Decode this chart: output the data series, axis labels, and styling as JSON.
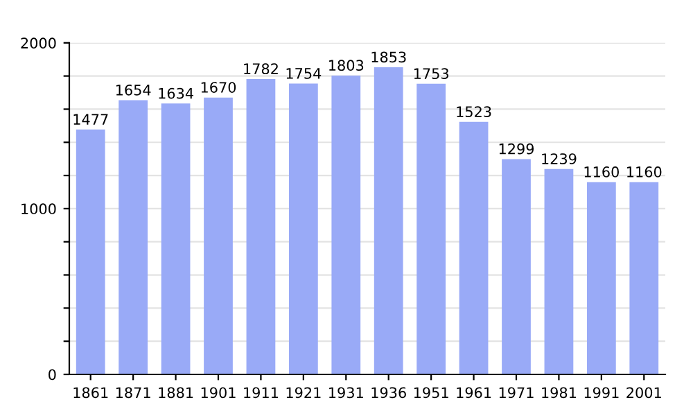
{
  "chart_data": {
    "type": "bar",
    "categories": [
      "1861",
      "1871",
      "1881",
      "1901",
      "1911",
      "1921",
      "1931",
      "1936",
      "1951",
      "1961",
      "1971",
      "1981",
      "1991",
      "2001"
    ],
    "values": [
      1477,
      1654,
      1634,
      1670,
      1782,
      1754,
      1803,
      1853,
      1753,
      1523,
      1299,
      1239,
      1160,
      1160
    ],
    "color": "#99aaf7",
    "data_labels": true,
    "ylim": [
      0,
      2000
    ],
    "yticks": [
      0,
      {
        "value": 200,
        "label": null
      },
      {
        "value": 400,
        "label": null
      },
      {
        "value": 600,
        "label": null
      },
      {
        "value": 800,
        "label": null
      },
      1000,
      {
        "value": 1200,
        "label": null
      },
      {
        "value": 1400,
        "label": null
      },
      {
        "value": 1600,
        "label": null
      },
      {
        "value": 1800,
        "label": null
      },
      2000
    ],
    "grid": "y"
  }
}
